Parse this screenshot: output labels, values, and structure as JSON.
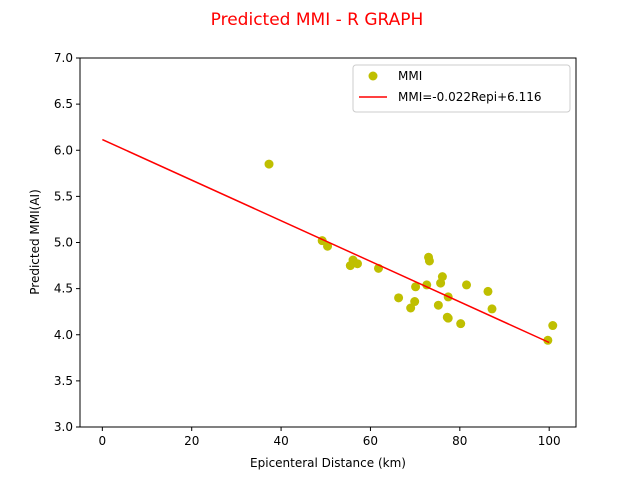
{
  "chart_data": {
    "type": "scatter",
    "title": "Predicted MMI - R GRAPH",
    "title_color": "#ff0000",
    "xlabel": "Epicenteral Distance (km)",
    "ylabel": "Predicted MMI(AI)",
    "xlim": [
      -5,
      106
    ],
    "ylim": [
      3.0,
      7.0
    ],
    "xticks": [
      0,
      20,
      40,
      60,
      80,
      100
    ],
    "xtick_labels": [
      "0",
      "20",
      "40",
      "60",
      "80",
      "100"
    ],
    "yticks": [
      3.0,
      3.5,
      4.0,
      4.5,
      5.0,
      5.5,
      6.0,
      6.5,
      7.0
    ],
    "ytick_labels": [
      "3.0",
      "3.5",
      "4.0",
      "4.5",
      "5.0",
      "5.5",
      "6.0",
      "6.5",
      "7.0"
    ],
    "grid": false,
    "legend_position": "top-right",
    "series": [
      {
        "name": "MMI",
        "kind": "scatter",
        "color": "#bfbf00",
        "points": [
          [
            37.3,
            5.85
          ],
          [
            49.2,
            5.02
          ],
          [
            50.4,
            4.96
          ],
          [
            55.5,
            4.75
          ],
          [
            56.1,
            4.81
          ],
          [
            57.1,
            4.77
          ],
          [
            61.8,
            4.72
          ],
          [
            66.3,
            4.4
          ],
          [
            69.0,
            4.29
          ],
          [
            69.9,
            4.36
          ],
          [
            70.1,
            4.52
          ],
          [
            72.6,
            4.54
          ],
          [
            73.0,
            4.84
          ],
          [
            73.2,
            4.8
          ],
          [
            75.2,
            4.32
          ],
          [
            75.7,
            4.56
          ],
          [
            76.1,
            4.63
          ],
          [
            77.2,
            4.19
          ],
          [
            77.4,
            4.18
          ],
          [
            77.4,
            4.41
          ],
          [
            80.2,
            4.12
          ],
          [
            81.5,
            4.54
          ],
          [
            86.3,
            4.47
          ],
          [
            87.2,
            4.28
          ],
          [
            99.7,
            3.94
          ],
          [
            100.8,
            4.1
          ]
        ]
      },
      {
        "name": "MMI=-0.022Repi+6.116",
        "kind": "line",
        "color": "#ff0000",
        "points": [
          [
            0,
            6.116
          ],
          [
            100,
            3.916
          ]
        ]
      }
    ]
  }
}
